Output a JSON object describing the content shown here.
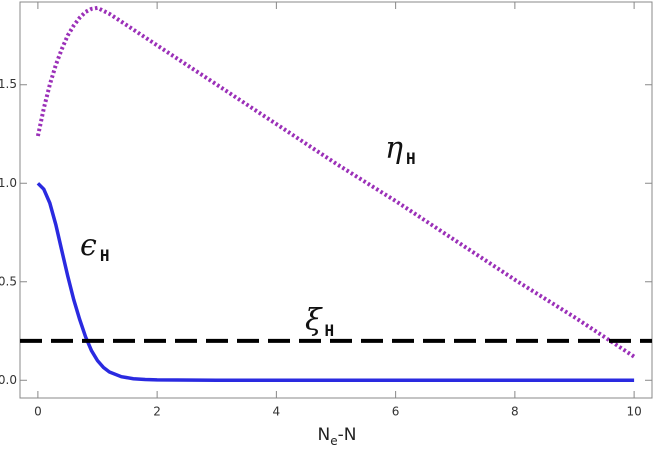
{
  "chart_data": {
    "type": "line",
    "x_label": [
      "N",
      "e",
      "-N"
    ],
    "xlim": [
      -0.3,
      10.3
    ],
    "ylim": [
      -0.09,
      1.92
    ],
    "xticks": [
      0,
      2,
      4,
      6,
      8,
      10
    ],
    "yticks": [
      {
        "value": 0,
        "label": "0.0"
      },
      0.5,
      {
        "value": 1,
        "label": "1.0"
      },
      1.5
    ],
    "series": [
      {
        "name": [
          "η",
          "H"
        ],
        "color": "#9b30b8",
        "style": "dotted",
        "x": [
          0,
          0.1,
          0.2,
          0.3,
          0.4,
          0.5,
          0.6,
          0.7,
          0.8,
          0.9,
          1.0,
          1.2,
          1.5,
          2,
          3,
          4,
          5,
          6,
          7,
          8,
          9,
          10
        ],
        "values": [
          1.24,
          1.38,
          1.5,
          1.6,
          1.68,
          1.75,
          1.8,
          1.84,
          1.87,
          1.885,
          1.89,
          1.86,
          1.8,
          1.7,
          1.5,
          1.3,
          1.1,
          0.91,
          0.71,
          0.51,
          0.32,
          0.12
        ]
      },
      {
        "name": [
          "ϵ",
          "H"
        ],
        "color": "#2a2ae0",
        "style": "solid",
        "x": [
          0,
          0.1,
          0.2,
          0.3,
          0.4,
          0.5,
          0.6,
          0.7,
          0.8,
          0.9,
          1.0,
          1.1,
          1.2,
          1.4,
          1.6,
          1.8,
          2,
          3,
          4,
          5,
          6,
          7,
          8,
          9,
          10
        ],
        "values": [
          1.0,
          0.97,
          0.9,
          0.79,
          0.66,
          0.53,
          0.41,
          0.31,
          0.22,
          0.15,
          0.1,
          0.065,
          0.042,
          0.018,
          0.008,
          0.004,
          0.002,
          0,
          0,
          0,
          0,
          0,
          0,
          0,
          0
        ]
      },
      {
        "name": [
          "ξ",
          "H"
        ],
        "color": "#000000",
        "style": "dashed",
        "x": [
          -0.3,
          10.3
        ],
        "values": [
          0.2,
          0.2
        ]
      }
    ]
  }
}
